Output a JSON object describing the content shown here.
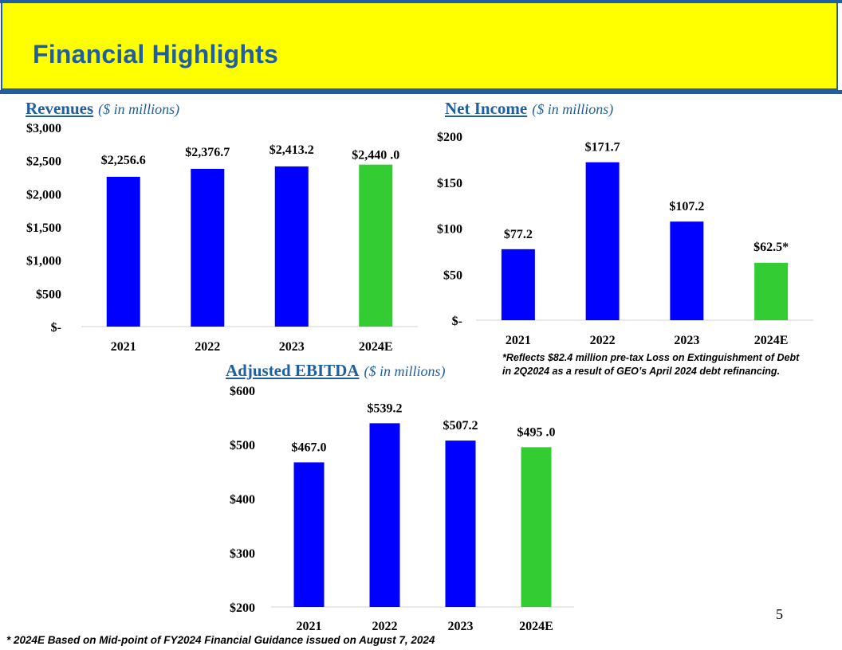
{
  "header": {
    "title": "Financial Highlights"
  },
  "colors": {
    "banner": "#ffff00",
    "brand": "#1f5f9f",
    "actual": "#0000ff",
    "estimate": "#33cc33"
  },
  "chart_data": [
    {
      "id": "revenues",
      "type": "bar",
      "title": "Revenues",
      "unit_label": "($ in millions)",
      "categories": [
        "2021",
        "2022",
        "2023",
        "2024E"
      ],
      "values": [
        2256.6,
        2376.7,
        2413.2,
        2440.0
      ],
      "value_labels": [
        "$2,256.6",
        "$2,376.7",
        "$2,413.2",
        "$2,440 .0"
      ],
      "estimate_index": 3,
      "ylim": [
        0,
        3000
      ],
      "yticks": [
        0,
        500,
        1000,
        1500,
        2000,
        2500,
        3000
      ],
      "ytick_labels": [
        "$-",
        "$500",
        "$1,000",
        "$1,500",
        "$2,000",
        "$2,500",
        "$3,000"
      ],
      "xlabel": "",
      "ylabel": "",
      "grid": false
    },
    {
      "id": "net-income",
      "type": "bar",
      "title": "Net Income",
      "unit_label": "($ in millions)",
      "categories": [
        "2021",
        "2022",
        "2023",
        "2024E"
      ],
      "values": [
        77.2,
        171.7,
        107.2,
        62.5
      ],
      "value_labels": [
        "$77.2",
        "$171.7",
        "$107.2",
        "$62.5*"
      ],
      "estimate_index": 3,
      "ylim": [
        0,
        200
      ],
      "yticks": [
        0,
        50,
        100,
        150,
        200
      ],
      "ytick_labels": [
        "$-",
        "$50",
        "$100",
        "$150",
        "$200"
      ],
      "xlabel": "",
      "ylabel": "",
      "grid": false
    },
    {
      "id": "adjusted-ebitda",
      "type": "bar",
      "title": "Adjusted EBITDA",
      "unit_label": "($ in millions)",
      "categories": [
        "2021",
        "2022",
        "2023",
        "2024E"
      ],
      "values": [
        467.0,
        539.2,
        507.2,
        495.0
      ],
      "value_labels": [
        "$467.0",
        "$539.2",
        "$507.2",
        "$495 .0"
      ],
      "estimate_index": 3,
      "ylim": [
        200,
        600
      ],
      "yticks": [
        200,
        300,
        400,
        500,
        600
      ],
      "ytick_labels": [
        "$200",
        "$300",
        "$400",
        "$500",
        "$600"
      ],
      "xlabel": "",
      "ylabel": "",
      "grid": false
    }
  ],
  "notes": {
    "net_income_line1": "*Reflects $82.4 million pre-tax Loss on Extinguishment of Debt",
    "net_income_line2": "in 2Q2024 as a result of GEO’s April 2024 debt refinancing.",
    "footnote": "* 2024E Based on Mid-point of FY2024 Financial Guidance issued on August 7, 2024"
  },
  "page_number": "5"
}
